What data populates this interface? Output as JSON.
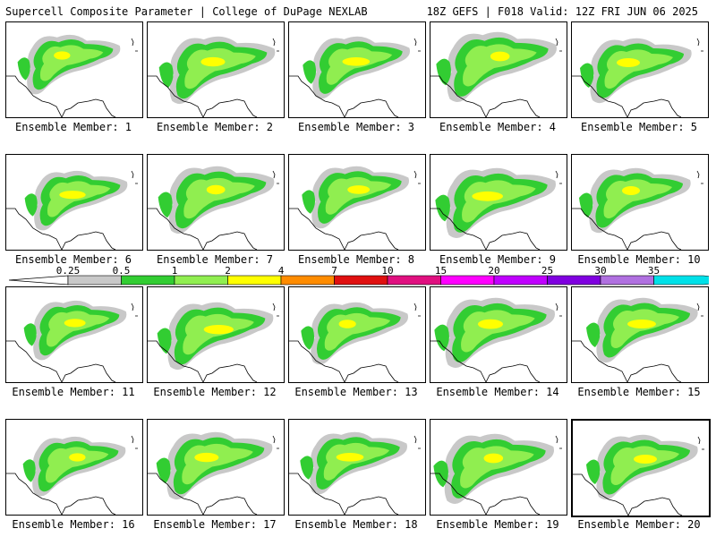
{
  "header": {
    "title_left": "Supercell Composite Parameter | College of DuPage NEXLAB",
    "title_right": "18Z GEFS | F018 Valid: 12Z FRI JUN 06 2025"
  },
  "legend": {
    "ticks": [
      "0.25",
      "0.5",
      "1",
      "2",
      "4",
      "7",
      "10",
      "15",
      "20",
      "25",
      "30",
      "35"
    ],
    "colors": [
      "#c8c8c8",
      "#32cd32",
      "#90ee50",
      "#ffff00",
      "#ff8c00",
      "#e01010",
      "#e01080",
      "#ff00ff",
      "#c000ff",
      "#8000e0",
      "#b070e0",
      "#00e0e8"
    ]
  },
  "panels": [
    {
      "label": "Ensemble Member: 1"
    },
    {
      "label": "Ensemble Member: 2"
    },
    {
      "label": "Ensemble Member: 3"
    },
    {
      "label": "Ensemble Member: 4"
    },
    {
      "label": "Ensemble Member: 5"
    },
    {
      "label": "Ensemble Member: 6"
    },
    {
      "label": "Ensemble Member: 7"
    },
    {
      "label": "Ensemble Member: 8"
    },
    {
      "label": "Ensemble Member: 9"
    },
    {
      "label": "Ensemble Member: 10"
    },
    {
      "label": "Ensemble Member: 11"
    },
    {
      "label": "Ensemble Member: 12"
    },
    {
      "label": "Ensemble Member: 13"
    },
    {
      "label": "Ensemble Member: 14"
    },
    {
      "label": "Ensemble Member: 15"
    },
    {
      "label": "Ensemble Member: 16"
    },
    {
      "label": "Ensemble Member: 17"
    },
    {
      "label": "Ensemble Member: 18"
    },
    {
      "label": "Ensemble Member: 19"
    },
    {
      "label": "Ensemble Member: 20"
    }
  ]
}
